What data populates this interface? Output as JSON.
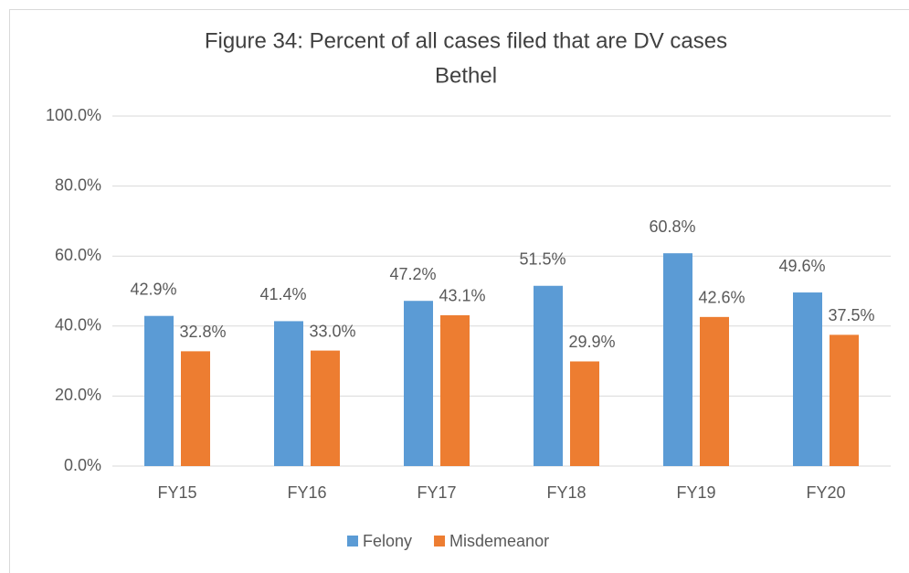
{
  "chart_data": {
    "type": "bar",
    "title": "Figure 34: Percent of all cases filed that are DV cases",
    "subtitle": "Bethel",
    "categories": [
      "FY15",
      "FY16",
      "FY17",
      "FY18",
      "FY19",
      "FY20"
    ],
    "series": [
      {
        "name": "Felony",
        "color": "#5b9bd5",
        "values": [
          42.9,
          41.4,
          47.2,
          51.5,
          60.8,
          49.6
        ],
        "value_labels": [
          "42.9%",
          "41.4%",
          "47.2%",
          "51.5%",
          "60.8%",
          "49.6%"
        ]
      },
      {
        "name": "Misdemeanor",
        "color": "#ed7d31",
        "values": [
          32.8,
          33.0,
          43.1,
          29.9,
          42.6,
          37.5
        ],
        "value_labels": [
          "32.8%",
          "33.0%",
          "43.1%",
          "29.9%",
          "42.6%",
          "37.5%"
        ]
      }
    ],
    "ylim": [
      0,
      100
    ],
    "yticks": [
      {
        "value": 0,
        "label": "0.0%"
      },
      {
        "value": 20,
        "label": "20.0%"
      },
      {
        "value": 40,
        "label": "40.0%"
      },
      {
        "value": 60,
        "label": "60.0%"
      },
      {
        "value": 80,
        "label": "80.0%"
      },
      {
        "value": 100,
        "label": "100.0%"
      }
    ],
    "grid": true,
    "legend": "bottom"
  }
}
